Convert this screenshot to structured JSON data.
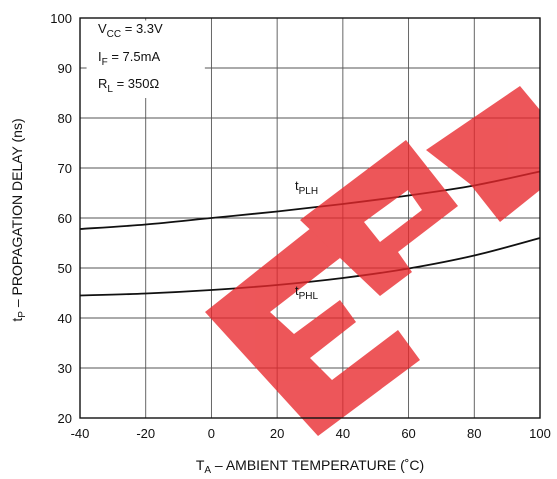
{
  "chart_data": {
    "type": "line",
    "title": "",
    "xlabel": "T",
    "xlabel_sub": "A",
    "xlabel_rest": " – AMBIENT TEMPERATURE (˚C)",
    "ylabel": "t",
    "ylabel_sub": "P",
    "ylabel_rest": " – PROPAGATION DELAY (ns)",
    "xlim": [
      -40,
      100
    ],
    "ylim": [
      20,
      100
    ],
    "xticks": [
      "-40",
      "-20",
      "0",
      "20",
      "40",
      "60",
      "80",
      "100"
    ],
    "yticks": [
      "20",
      "30",
      "40",
      "50",
      "60",
      "70",
      "80",
      "90",
      "100"
    ],
    "grid": true,
    "conditions": [
      {
        "main": "V",
        "sub": "CC",
        "rest": " = 3.3V"
      },
      {
        "main": "I",
        "sub": "F",
        "rest": " = 7.5mA"
      },
      {
        "main": "R",
        "sub": "L",
        "rest": " = 350Ω"
      }
    ],
    "series": [
      {
        "name": "tPLH",
        "label_main": "t",
        "label_sub": "PLH",
        "x": [
          -40,
          -20,
          0,
          20,
          40,
          60,
          80,
          100
        ],
        "y": [
          57.8,
          58.7,
          60.0,
          61.3,
          62.8,
          64.5,
          66.5,
          69.3
        ]
      },
      {
        "name": "tPHL",
        "label_main": "t",
        "label_sub": "PHL",
        "x": [
          -40,
          -20,
          0,
          20,
          40,
          60,
          80,
          100
        ],
        "y": [
          44.5,
          44.9,
          45.6,
          46.6,
          48.0,
          49.9,
          52.5,
          56.0
        ]
      }
    ],
    "watermark_text": "ERPW",
    "colors": {
      "line": "#111111",
      "grid": "#555555",
      "watermark": "#e8272b"
    }
  }
}
